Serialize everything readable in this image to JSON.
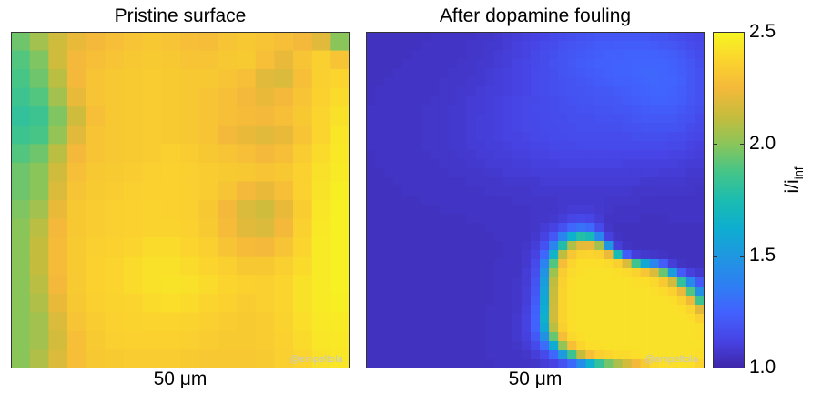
{
  "chart_data": {
    "type": "heatmap",
    "panels": [
      {
        "title": "Pristine surface",
        "xlabel": "50 μm",
        "watermark": "@empeltola",
        "nx": 18,
        "ny": 18,
        "values": [
          [
            1.95,
            2.05,
            2.15,
            2.22,
            2.25,
            2.28,
            2.3,
            2.32,
            2.3,
            2.28,
            2.27,
            2.3,
            2.32,
            2.3,
            2.28,
            2.25,
            2.2,
            2.0
          ],
          [
            1.9,
            1.98,
            2.15,
            2.25,
            2.28,
            2.3,
            2.32,
            2.33,
            2.32,
            2.3,
            2.3,
            2.32,
            2.33,
            2.28,
            2.22,
            2.3,
            2.35,
            2.3
          ],
          [
            1.88,
            1.95,
            2.1,
            2.25,
            2.3,
            2.32,
            2.33,
            2.34,
            2.33,
            2.32,
            2.32,
            2.3,
            2.28,
            2.2,
            2.18,
            2.28,
            2.35,
            2.38
          ],
          [
            1.85,
            1.9,
            2.05,
            2.22,
            2.3,
            2.32,
            2.33,
            2.34,
            2.33,
            2.32,
            2.3,
            2.28,
            2.25,
            2.22,
            2.25,
            2.3,
            2.36,
            2.4
          ],
          [
            1.82,
            1.85,
            1.98,
            2.15,
            2.28,
            2.32,
            2.33,
            2.34,
            2.33,
            2.32,
            2.3,
            2.28,
            2.26,
            2.25,
            2.28,
            2.32,
            2.38,
            2.42
          ],
          [
            1.85,
            1.88,
            2.02,
            2.2,
            2.3,
            2.32,
            2.33,
            2.34,
            2.33,
            2.32,
            2.3,
            2.25,
            2.22,
            2.2,
            2.22,
            2.3,
            2.38,
            2.44
          ],
          [
            1.9,
            1.95,
            2.1,
            2.25,
            2.3,
            2.32,
            2.33,
            2.34,
            2.35,
            2.34,
            2.32,
            2.3,
            2.28,
            2.25,
            2.28,
            2.34,
            2.4,
            2.45
          ],
          [
            1.95,
            2.0,
            2.15,
            2.28,
            2.32,
            2.33,
            2.34,
            2.35,
            2.36,
            2.35,
            2.34,
            2.33,
            2.32,
            2.3,
            2.32,
            2.36,
            2.42,
            2.46
          ],
          [
            1.95,
            2.0,
            2.18,
            2.3,
            2.33,
            2.34,
            2.35,
            2.36,
            2.36,
            2.35,
            2.34,
            2.3,
            2.25,
            2.22,
            2.28,
            2.36,
            2.43,
            2.47
          ],
          [
            1.98,
            2.05,
            2.22,
            2.32,
            2.34,
            2.35,
            2.36,
            2.37,
            2.36,
            2.35,
            2.32,
            2.25,
            2.18,
            2.15,
            2.22,
            2.34,
            2.44,
            2.48
          ],
          [
            2.0,
            2.1,
            2.25,
            2.32,
            2.34,
            2.35,
            2.36,
            2.37,
            2.37,
            2.36,
            2.33,
            2.26,
            2.2,
            2.18,
            2.25,
            2.36,
            2.45,
            2.48
          ],
          [
            2.0,
            2.12,
            2.26,
            2.33,
            2.35,
            2.36,
            2.38,
            2.4,
            2.4,
            2.38,
            2.35,
            2.3,
            2.26,
            2.25,
            2.3,
            2.38,
            2.46,
            2.48
          ],
          [
            2.0,
            2.12,
            2.26,
            2.33,
            2.36,
            2.38,
            2.4,
            2.42,
            2.42,
            2.4,
            2.38,
            2.35,
            2.32,
            2.32,
            2.35,
            2.4,
            2.46,
            2.48
          ],
          [
            2.0,
            2.1,
            2.25,
            2.33,
            2.36,
            2.38,
            2.4,
            2.42,
            2.43,
            2.42,
            2.4,
            2.38,
            2.36,
            2.35,
            2.38,
            2.42,
            2.46,
            2.48
          ],
          [
            2.0,
            2.08,
            2.22,
            2.32,
            2.35,
            2.37,
            2.38,
            2.4,
            2.41,
            2.4,
            2.38,
            2.36,
            2.34,
            2.35,
            2.38,
            2.42,
            2.46,
            2.47
          ],
          [
            2.0,
            2.05,
            2.18,
            2.3,
            2.34,
            2.36,
            2.37,
            2.38,
            2.38,
            2.37,
            2.35,
            2.34,
            2.33,
            2.34,
            2.37,
            2.41,
            2.45,
            2.46
          ],
          [
            2.0,
            2.05,
            2.16,
            2.28,
            2.33,
            2.35,
            2.36,
            2.36,
            2.36,
            2.35,
            2.34,
            2.33,
            2.33,
            2.34,
            2.36,
            2.4,
            2.44,
            2.45
          ],
          [
            2.0,
            2.08,
            2.18,
            2.28,
            2.32,
            2.33,
            2.34,
            2.34,
            2.34,
            2.33,
            2.32,
            2.32,
            2.32,
            2.33,
            2.35,
            2.38,
            2.42,
            2.44
          ]
        ]
      },
      {
        "title": "After dopamine fouling",
        "xlabel": "50 μm",
        "watermark": "@empeltola",
        "nx": 37,
        "ny": 37,
        "model": {
          "base": 1.05,
          "background": [
            {
              "c": [
                26,
                2
              ],
              "r": [
                9,
                5
              ],
              "a": 0.16
            },
            {
              "c": [
                33,
                6
              ],
              "r": [
                5,
                6
              ],
              "a": 0.12
            },
            {
              "c": [
                23,
                10
              ],
              "r": [
                12,
                6
              ],
              "a": 0.1
            }
          ],
          "blobs": [
            {
              "c": [
                23.5,
                26
              ],
              "r": [
                5.5,
                6
              ],
              "a": 1
            },
            {
              "c": [
                30,
                29
              ],
              "r": [
                7,
                5.5
              ],
              "a": 1
            },
            {
              "c": [
                27.5,
                33
              ],
              "r": [
                9,
                4
              ],
              "a": 1
            },
            {
              "c": [
                34.5,
                35
              ],
              "r": [
                4,
                4
              ],
              "a": 0.9
            }
          ],
          "holes": [
            {
              "c": [
                29,
                21.5
              ],
              "r": [
                3,
                3
              ],
              "a": 0.9
            },
            {
              "c": [
                35,
                23.5
              ],
              "r": [
                2.5,
                2
              ],
              "a": 0.7
            }
          ],
          "edge": 0.68,
          "steep": 9,
          "max": 2.42
        }
      }
    ],
    "colorbar": {
      "min": 1.0,
      "max": 2.5,
      "ticks": [
        1.0,
        1.5,
        2.0,
        2.5
      ],
      "tick_labels": [
        "1.0",
        "1.5",
        "2.0",
        "2.5"
      ],
      "label_main": "i/i",
      "label_sub": "inf"
    },
    "colormap": [
      "#3E26A8",
      "#4744E5",
      "#4262FE",
      "#2D80F2",
      "#1F97E0",
      "#0EAED0",
      "#1BBCB0",
      "#44C588",
      "#8AC55A",
      "#C6BC3C",
      "#F4B93A",
      "#FBD42E",
      "#F6F621"
    ]
  }
}
